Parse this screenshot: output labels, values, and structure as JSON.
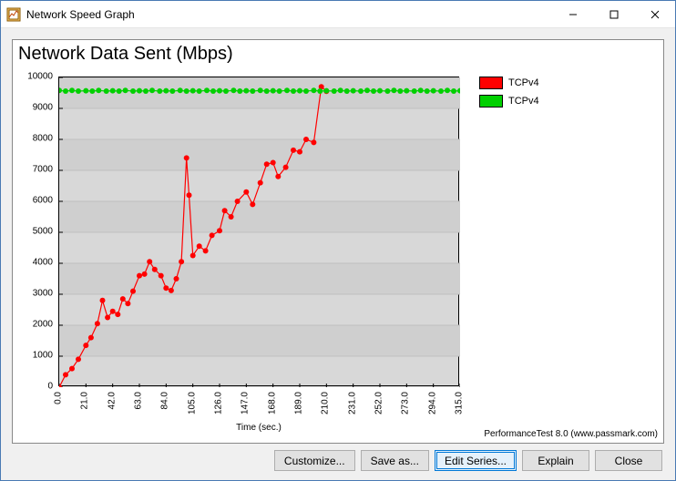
{
  "window": {
    "title": "Network Speed Graph"
  },
  "chart": {
    "title": "Network Data Sent (Mbps)",
    "x_label": "Time (sec.)",
    "footer": "PerformanceTest 8.0 (www.passmark.com)",
    "background_color": "#ffffff",
    "plot_background_color": "#d8d8d8",
    "stripe_color": "#cfcfcf",
    "y": {
      "min": 0,
      "max": 10000,
      "ticks": [
        0,
        1000,
        2000,
        3000,
        4000,
        5000,
        6000,
        7000,
        8000,
        9000,
        10000
      ]
    },
    "x": {
      "min": 0,
      "max": 315,
      "ticks": [
        "0.0",
        "21.0",
        "42.0",
        "63.0",
        "84.0",
        "105.0",
        "126.0",
        "147.0",
        "168.0",
        "189.0",
        "210.0",
        "231.0",
        "252.0",
        "273.0",
        "294.0",
        "315.0"
      ],
      "tick_values": [
        0,
        21,
        42,
        63,
        84,
        105,
        126,
        147,
        168,
        189,
        210,
        231,
        252,
        273,
        294,
        315
      ]
    },
    "series": [
      {
        "label": "TCPv4",
        "color": "#ff0000",
        "marker": "circle",
        "marker_size": 3,
        "line_width": 1.2,
        "data": [
          [
            0,
            0
          ],
          [
            5,
            400
          ],
          [
            10,
            600
          ],
          [
            15,
            900
          ],
          [
            21,
            1350
          ],
          [
            25,
            1600
          ],
          [
            30,
            2050
          ],
          [
            34,
            2800
          ],
          [
            38,
            2250
          ],
          [
            42,
            2450
          ],
          [
            46,
            2350
          ],
          [
            50,
            2850
          ],
          [
            54,
            2700
          ],
          [
            58,
            3100
          ],
          [
            63,
            3600
          ],
          [
            67,
            3650
          ],
          [
            71,
            4050
          ],
          [
            75,
            3800
          ],
          [
            80,
            3600
          ],
          [
            84,
            3200
          ],
          [
            88,
            3120
          ],
          [
            92,
            3500
          ],
          [
            96,
            4050
          ],
          [
            100,
            7400
          ],
          [
            102,
            6200
          ],
          [
            105,
            4250
          ],
          [
            110,
            4550
          ],
          [
            115,
            4400
          ],
          [
            120,
            4900
          ],
          [
            126,
            5050
          ],
          [
            130,
            5700
          ],
          [
            135,
            5500
          ],
          [
            140,
            6000
          ],
          [
            147,
            6300
          ],
          [
            152,
            5900
          ],
          [
            158,
            6600
          ],
          [
            163,
            7200
          ],
          [
            168,
            7250
          ],
          [
            172,
            6800
          ],
          [
            178,
            7100
          ],
          [
            184,
            7650
          ],
          [
            189,
            7600
          ],
          [
            194,
            8000
          ],
          [
            200,
            7900
          ],
          [
            206,
            9700
          ],
          [
            210,
            9550
          ]
        ]
      },
      {
        "label": "TCPv4",
        "color": "#00d000",
        "marker": "circle",
        "marker_size": 3,
        "line_width": 1.2,
        "data": [
          [
            0,
            9580
          ],
          [
            5,
            9560
          ],
          [
            10,
            9580
          ],
          [
            15,
            9560
          ],
          [
            21,
            9570
          ],
          [
            26,
            9560
          ],
          [
            31,
            9580
          ],
          [
            37,
            9560
          ],
          [
            42,
            9570
          ],
          [
            47,
            9560
          ],
          [
            52,
            9580
          ],
          [
            58,
            9560
          ],
          [
            63,
            9570
          ],
          [
            68,
            9560
          ],
          [
            73,
            9580
          ],
          [
            79,
            9560
          ],
          [
            84,
            9570
          ],
          [
            89,
            9560
          ],
          [
            95,
            9580
          ],
          [
            100,
            9560
          ],
          [
            105,
            9570
          ],
          [
            110,
            9560
          ],
          [
            116,
            9580
          ],
          [
            121,
            9560
          ],
          [
            126,
            9570
          ],
          [
            131,
            9560
          ],
          [
            137,
            9580
          ],
          [
            142,
            9560
          ],
          [
            147,
            9570
          ],
          [
            152,
            9560
          ],
          [
            158,
            9580
          ],
          [
            163,
            9560
          ],
          [
            168,
            9570
          ],
          [
            173,
            9560
          ],
          [
            179,
            9580
          ],
          [
            184,
            9560
          ],
          [
            189,
            9570
          ],
          [
            194,
            9560
          ],
          [
            200,
            9580
          ],
          [
            205,
            9560
          ],
          [
            210,
            9570
          ],
          [
            216,
            9560
          ],
          [
            221,
            9580
          ],
          [
            226,
            9560
          ],
          [
            231,
            9570
          ],
          [
            237,
            9560
          ],
          [
            242,
            9580
          ],
          [
            247,
            9560
          ],
          [
            252,
            9570
          ],
          [
            258,
            9560
          ],
          [
            263,
            9580
          ],
          [
            268,
            9560
          ],
          [
            273,
            9570
          ],
          [
            279,
            9560
          ],
          [
            284,
            9580
          ],
          [
            289,
            9560
          ],
          [
            294,
            9570
          ],
          [
            300,
            9560
          ],
          [
            305,
            9580
          ],
          [
            310,
            9560
          ],
          [
            315,
            9570
          ]
        ]
      }
    ]
  },
  "buttons": {
    "customize": "Customize...",
    "save_as": "Save as...",
    "edit_series": "Edit Series...",
    "explain": "Explain",
    "close": "Close"
  }
}
